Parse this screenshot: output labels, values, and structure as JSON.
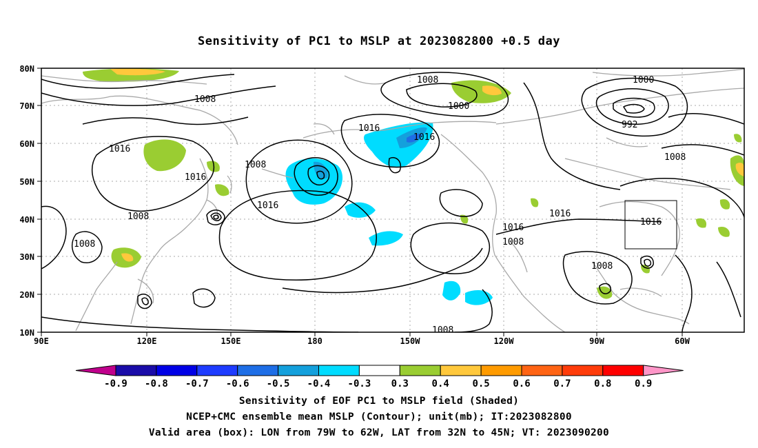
{
  "title": "Sensitivity of PC1 to MSLP at 2023082800 +0.5 day",
  "lat_labels": [
    "80N",
    "70N",
    "60N",
    "50N",
    "40N",
    "30N",
    "20N",
    "10N"
  ],
  "lon_labels": [
    "90E",
    "120E",
    "150E",
    "180",
    "150W",
    "120W",
    "90W",
    "60W"
  ],
  "contour_labels": [
    "1008",
    "1008",
    "1000",
    "1000",
    "992",
    "1016",
    "1016",
    "1016",
    "1008",
    "1008",
    "1016",
    "1008",
    "1016",
    "1016",
    "1016",
    "1008",
    "1016",
    "1008",
    "1008",
    "1008"
  ],
  "colorbar": {
    "labels": [
      "-0.9",
      "-0.8",
      "-0.7",
      "-0.6",
      "-0.5",
      "-0.4",
      "-0.3",
      "0.3",
      "0.4",
      "0.5",
      "0.6",
      "0.7",
      "0.8",
      "0.9"
    ],
    "colors": [
      "#1a0ca8",
      "#0000e6",
      "#1e3cff",
      "#1e6ee6",
      "#14a0dc",
      "#00dcff",
      "#ffffff",
      "#9acd32",
      "#ffc83c",
      "#ff9b00",
      "#ff6414",
      "#ff3c0a",
      "#ff0000"
    ],
    "below_color": "#c0008c",
    "above_color": "#ff96c8"
  },
  "box": {
    "lon": "79W to 62W",
    "lat": "32N to 45N"
  },
  "captions": [
    "Sensitivity of EOF PC1 to MSLP field (Shaded)",
    "NCEP+CMC ensemble mean MSLP (Contour); unit(mb); IT:2023082800",
    "Valid area (box): LON from 79W to 62W, LAT from 32N to 45N; VT: 2023090200"
  ]
}
